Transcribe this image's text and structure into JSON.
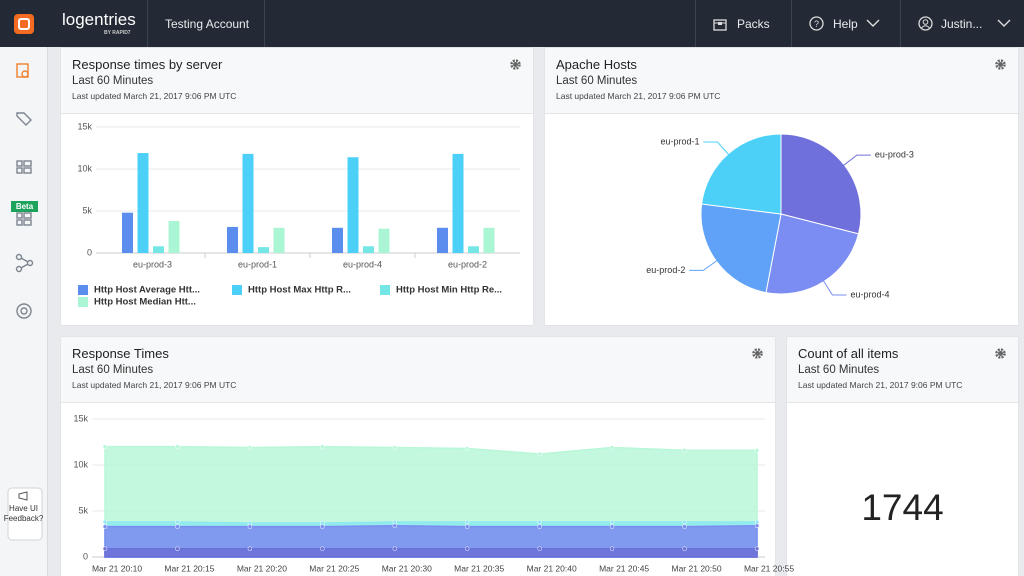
{
  "nav": {
    "brand": "logentries",
    "brand_sub": "BY RAPID7",
    "account": "Testing Account",
    "packs": "Packs",
    "help": "Help",
    "user": "Justin..."
  },
  "sidebar": {
    "beta": "Beta",
    "feedback": "Have UI Feedback?"
  },
  "chart_data": [
    {
      "type": "bar",
      "title": "Response times by server",
      "subtitle": "Last 60 Minutes",
      "note": "Last updated March 21, 2017 9:06 PM UTC",
      "categories": [
        "eu-prod-3",
        "eu-prod-1",
        "eu-prod-4",
        "eu-prod-2"
      ],
      "series": [
        {
          "name": "Http Host Average Htt...",
          "color": "#5b8def",
          "values": [
            4800,
            3100,
            3000,
            3000
          ]
        },
        {
          "name": "Http Host Max Http R...",
          "color": "#4dd0f7",
          "values": [
            11900,
            11800,
            11400,
            11800
          ]
        },
        {
          "name": "Http Host Min Http Re...",
          "color": "#74e6e6",
          "values": [
            800,
            700,
            800,
            800
          ]
        },
        {
          "name": "Http Host Median Htt...",
          "color": "#aaf5d3",
          "values": [
            3800,
            3000,
            2900,
            3000
          ]
        }
      ],
      "ylim": [
        0,
        15000
      ],
      "yticks": [
        0,
        {
          "value": 5000,
          "label": "5k"
        },
        {
          "value": 10000,
          "label": "10k"
        },
        {
          "value": 15000,
          "label": "15k"
        }
      ],
      "grid": true
    },
    {
      "type": "pie",
      "title": "Apache Hosts",
      "subtitle": "Last 60 Minutes",
      "note": "Last updated March 21, 2017 9:06 PM UTC",
      "categories": [
        "eu-prod-3",
        "eu-prod-4",
        "eu-prod-2",
        "eu-prod-1"
      ],
      "values": [
        29,
        24,
        24,
        23
      ],
      "colors": [
        "#7070dc",
        "#7b8cf2",
        "#5fa2f8",
        "#4dd0f8"
      ]
    },
    {
      "type": "area",
      "title": "Response Times",
      "subtitle": "Last 60 Minutes",
      "note": "Last updated March 21, 2017 9:06 PM UTC",
      "categories": [
        "Mar 21 20:10",
        "Mar 21 20:15",
        "Mar 21 20:20",
        "Mar 21 20:25",
        "Mar 21 20:30",
        "Mar 21 20:35",
        "Mar 21 20:40",
        "Mar 21 20:45",
        "Mar 21 20:50",
        "Mar 21 20:55"
      ],
      "series": [
        {
          "color": "#b8f7d8",
          "values": [
            12000,
            12000,
            11900,
            12000,
            11900,
            11800,
            11200,
            11900,
            11600,
            11600
          ]
        },
        {
          "color": "#8ce9ef",
          "values": [
            3800,
            3800,
            3700,
            3700,
            3800,
            3800,
            3800,
            3800,
            3800,
            3800
          ]
        },
        {
          "color": "#7b8cf0",
          "values": [
            3300,
            3300,
            3300,
            3300,
            3400,
            3300,
            3300,
            3300,
            3300,
            3400
          ]
        },
        {
          "color": "#6b70d8",
          "values": [
            900,
            900,
            900,
            900,
            900,
            900,
            900,
            900,
            900,
            900
          ]
        }
      ],
      "ylim": [
        0,
        15000
      ],
      "yticks": [
        0,
        {
          "value": 5000,
          "label": "5k"
        },
        {
          "value": 10000,
          "label": "10k"
        },
        {
          "value": 15000,
          "label": "15k"
        }
      ],
      "grid": true
    }
  ],
  "count_widget": {
    "title": "Count of all items",
    "subtitle": "Last 60 Minutes",
    "note": "Last updated March 21, 2017 9:06 PM UTC",
    "value": 1744
  }
}
